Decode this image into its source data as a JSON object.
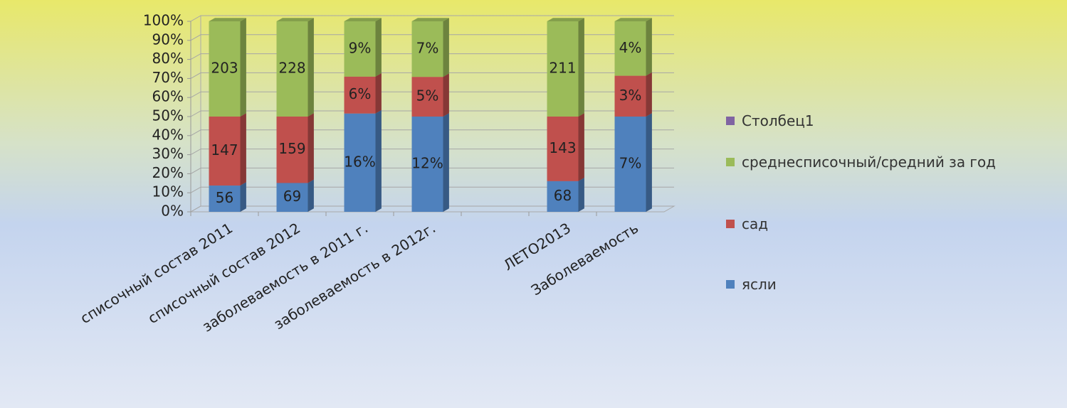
{
  "chart_data": {
    "type": "stacked_percent_bar",
    "categories": [
      "списочный состав  2011",
      "списочный состав  2012",
      "заболеваемость в 2011 г.",
      "заболеваемость в 2012г.",
      null,
      "ЛЕТО2013",
      "Заболеваемость"
    ],
    "series": [
      {
        "name": "ясли",
        "color": "#4f81bd",
        "values": [
          56,
          69,
          16,
          12,
          null,
          68,
          7
        ],
        "value_labels": [
          "56",
          "69",
          "16%",
          "12%",
          null,
          "68",
          "7%"
        ]
      },
      {
        "name": "сад",
        "color": "#c0504d",
        "values": [
          147,
          159,
          6,
          5,
          null,
          143,
          3
        ],
        "value_labels": [
          "147",
          "159",
          "6%",
          "5%",
          null,
          "143",
          "3%"
        ]
      },
      {
        "name": "среднесписочный/средний за год",
        "color": "#9bbb59",
        "values": [
          203,
          228,
          9,
          7,
          null,
          211,
          4
        ],
        "value_labels": [
          "203",
          "228",
          "9%",
          "7%",
          null,
          "211",
          "4%"
        ]
      },
      {
        "name": "Столбец1",
        "color": "#8064a2",
        "values": [
          null,
          null,
          null,
          null,
          null,
          null,
          null
        ]
      }
    ],
    "ylim": [
      0,
      100
    ],
    "yticks": [
      {
        "value": 0,
        "label": "0%"
      },
      {
        "value": 10,
        "label": "10%"
      },
      {
        "value": 20,
        "label": "20%"
      },
      {
        "value": 30,
        "label": "30%"
      },
      {
        "value": 40,
        "label": "40%"
      },
      {
        "value": 50,
        "label": "50%"
      },
      {
        "value": 60,
        "label": "60%"
      },
      {
        "value": 70,
        "label": "70%"
      },
      {
        "value": 80,
        "label": "80%"
      },
      {
        "value": 90,
        "label": "90%"
      },
      {
        "value": 100,
        "label": "100%"
      }
    ],
    "grid": true,
    "legend": "right"
  }
}
